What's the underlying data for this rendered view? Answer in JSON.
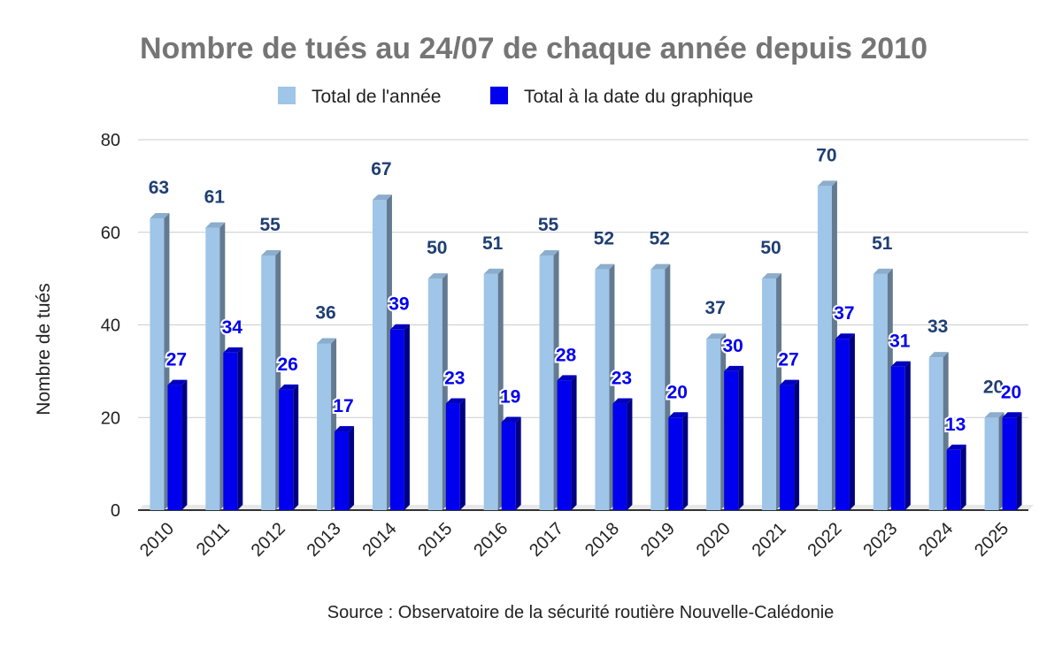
{
  "chart_data": {
    "type": "bar",
    "title": "Nombre de tués au 24/07 de chaque année depuis 2010",
    "ylabel": "Nombre de tués",
    "source": "Source : Observatoire de la sécurité routière Nouvelle-Calédonie",
    "ylim": [
      0,
      80
    ],
    "yticks": [
      0,
      20,
      40,
      60,
      80
    ],
    "grid": true,
    "legend_position": "top",
    "categories": [
      "2010",
      "2011",
      "2012",
      "2013",
      "2014",
      "2015",
      "2016",
      "2017",
      "2018",
      "2019",
      "2020",
      "2021",
      "2022",
      "2023",
      "2024",
      "2025"
    ],
    "series": [
      {
        "name": "Total de l'année",
        "color": "#9fc5e8",
        "values": [
          63,
          61,
          55,
          36,
          67,
          50,
          51,
          55,
          52,
          52,
          37,
          50,
          70,
          51,
          33,
          20
        ]
      },
      {
        "name": "Total à la date du graphique",
        "color": "#0000ee",
        "values": [
          27,
          34,
          26,
          17,
          39,
          23,
          19,
          28,
          23,
          20,
          30,
          27,
          37,
          31,
          13,
          20
        ]
      }
    ]
  }
}
